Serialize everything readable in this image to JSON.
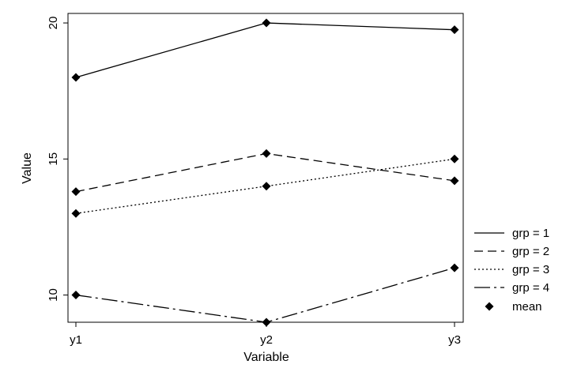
{
  "chart_data": {
    "type": "line",
    "xlabel": "Variable",
    "ylabel": "Value",
    "categories": [
      "y1",
      "y2",
      "y3"
    ],
    "ylim": [
      9,
      20.35
    ],
    "yticks": [
      10,
      15,
      20
    ],
    "grid": false,
    "legend_position": "right",
    "series": [
      {
        "name": "grp = 1",
        "dash": "solid",
        "values": [
          18.0,
          20.0,
          19.75
        ]
      },
      {
        "name": "grp = 2",
        "dash": "dashed",
        "values": [
          13.8,
          15.2,
          14.2
        ]
      },
      {
        "name": "grp = 3",
        "dash": "dotted",
        "values": [
          13.0,
          14.0,
          15.0
        ]
      },
      {
        "name": "grp = 4",
        "dash": "longdash-dot",
        "values": [
          10.0,
          9.0,
          11.0
        ]
      }
    ],
    "marker_legend": "mean",
    "marker": "diamond",
    "line_color": "#000000"
  }
}
